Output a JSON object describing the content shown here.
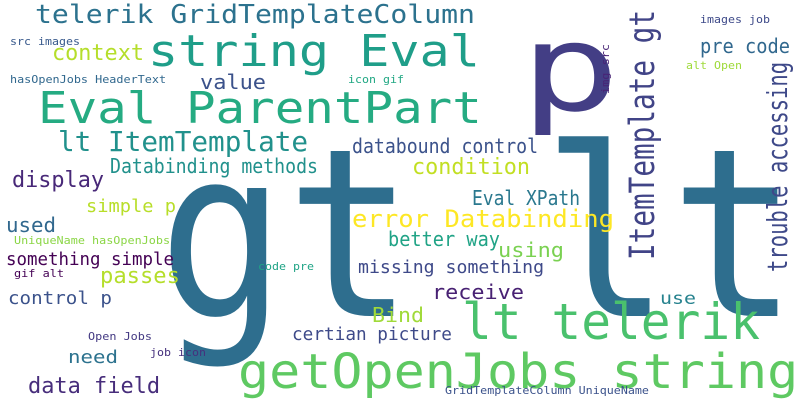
{
  "word_cloud": {
    "words": [
      {
        "key": "gt_lt",
        "text": "gt lt",
        "color": "#2e6e8e"
      },
      {
        "key": "p",
        "text": "p",
        "color": "#433e85"
      },
      {
        "key": "string_eval",
        "text": "string Eval",
        "color": "#1f9e89"
      },
      {
        "key": "eval_parentpart",
        "text": "Eval ParentPart",
        "color": "#25ab82"
      },
      {
        "key": "telerik_gridtemplatecolumn",
        "text": "telerik GridTemplateColumn",
        "color": "#2c728e"
      },
      {
        "key": "lt_itemtemplate",
        "text": "lt ItemTemplate",
        "color": "#21918c"
      },
      {
        "key": "lt_telerik",
        "text": "lt telerik",
        "color": "#4ac16d"
      },
      {
        "key": "getopenjobs_string",
        "text": "getOpenJobs string",
        "color": "#5ec962"
      },
      {
        "key": "itemtemplate_gt",
        "text": "ItemTemplate gt",
        "color": "#414487"
      },
      {
        "key": "trouble_accessing",
        "text": "trouble accessing",
        "color": "#3e4989"
      },
      {
        "key": "context",
        "text": "context",
        "color": "#b5de2b"
      },
      {
        "key": "value",
        "text": "value",
        "color": "#3b528b"
      },
      {
        "key": "pre_code",
        "text": "pre code",
        "color": "#31688e"
      },
      {
        "key": "databinding_methods",
        "text": "Databinding methods",
        "color": "#21918c"
      },
      {
        "key": "databound_control",
        "text": "databound control",
        "color": "#3b528b"
      },
      {
        "key": "condition",
        "text": "condition",
        "color": "#c2df23"
      },
      {
        "key": "display",
        "text": "display",
        "color": "#482878"
      },
      {
        "key": "eval_xpath",
        "text": "Eval XPath",
        "color": "#2a788e"
      },
      {
        "key": "error_databinding",
        "text": "error Databinding",
        "color": "#fde725"
      },
      {
        "key": "simple_p",
        "text": "simple p",
        "color": "#b8de29"
      },
      {
        "key": "used",
        "text": "used",
        "color": "#31688e"
      },
      {
        "key": "better_way",
        "text": "better way",
        "color": "#20a386"
      },
      {
        "key": "using",
        "text": "using",
        "color": "#7ad151"
      },
      {
        "key": "something_simple",
        "text": "something simple",
        "color": "#440154"
      },
      {
        "key": "missing_something",
        "text": "missing something",
        "color": "#3e4989"
      },
      {
        "key": "passes",
        "text": "passes",
        "color": "#b5de2b"
      },
      {
        "key": "receive",
        "text": "receive",
        "color": "#482173"
      },
      {
        "key": "control_p",
        "text": "control p",
        "color": "#3b528b"
      },
      {
        "key": "bind",
        "text": "Bind",
        "color": "#a0da39"
      },
      {
        "key": "use",
        "text": "use",
        "color": "#26828e"
      },
      {
        "key": "certian_picture",
        "text": "certian picture",
        "color": "#3e4a89"
      },
      {
        "key": "need",
        "text": "need",
        "color": "#2c728e"
      },
      {
        "key": "data_field",
        "text": "data field",
        "color": "#472d7b"
      },
      {
        "key": "src_images",
        "text": "src images",
        "color": "#38598c"
      },
      {
        "key": "hasopenjobs_headertext",
        "text": "hasOpenJobs HeaderText",
        "color": "#31688e"
      },
      {
        "key": "icon_gif",
        "text": "icon gif",
        "color": "#22a884"
      },
      {
        "key": "img_src",
        "text": "img src",
        "color": "#482475"
      },
      {
        "key": "images_job",
        "text": "images job",
        "color": "#3e4a89"
      },
      {
        "key": "alt_open",
        "text": "alt Open",
        "color": "#9fda3a"
      },
      {
        "key": "uniquename_hasopenjobs",
        "text": "UniqueName hasOpenJobs",
        "color": "#8bd646"
      },
      {
        "key": "gif_alt",
        "text": "gif alt",
        "color": "#440154"
      },
      {
        "key": "code_pre",
        "text": "code pre",
        "color": "#20a486"
      },
      {
        "key": "open_jobs",
        "text": "Open Jobs",
        "color": "#443a83"
      },
      {
        "key": "job_icon",
        "text": "job icon",
        "color": "#46317e"
      },
      {
        "key": "gridtemplatecolumn_uniquename",
        "text": "GridTemplateColumn UniqueName",
        "color": "#3b528b"
      }
    ]
  }
}
